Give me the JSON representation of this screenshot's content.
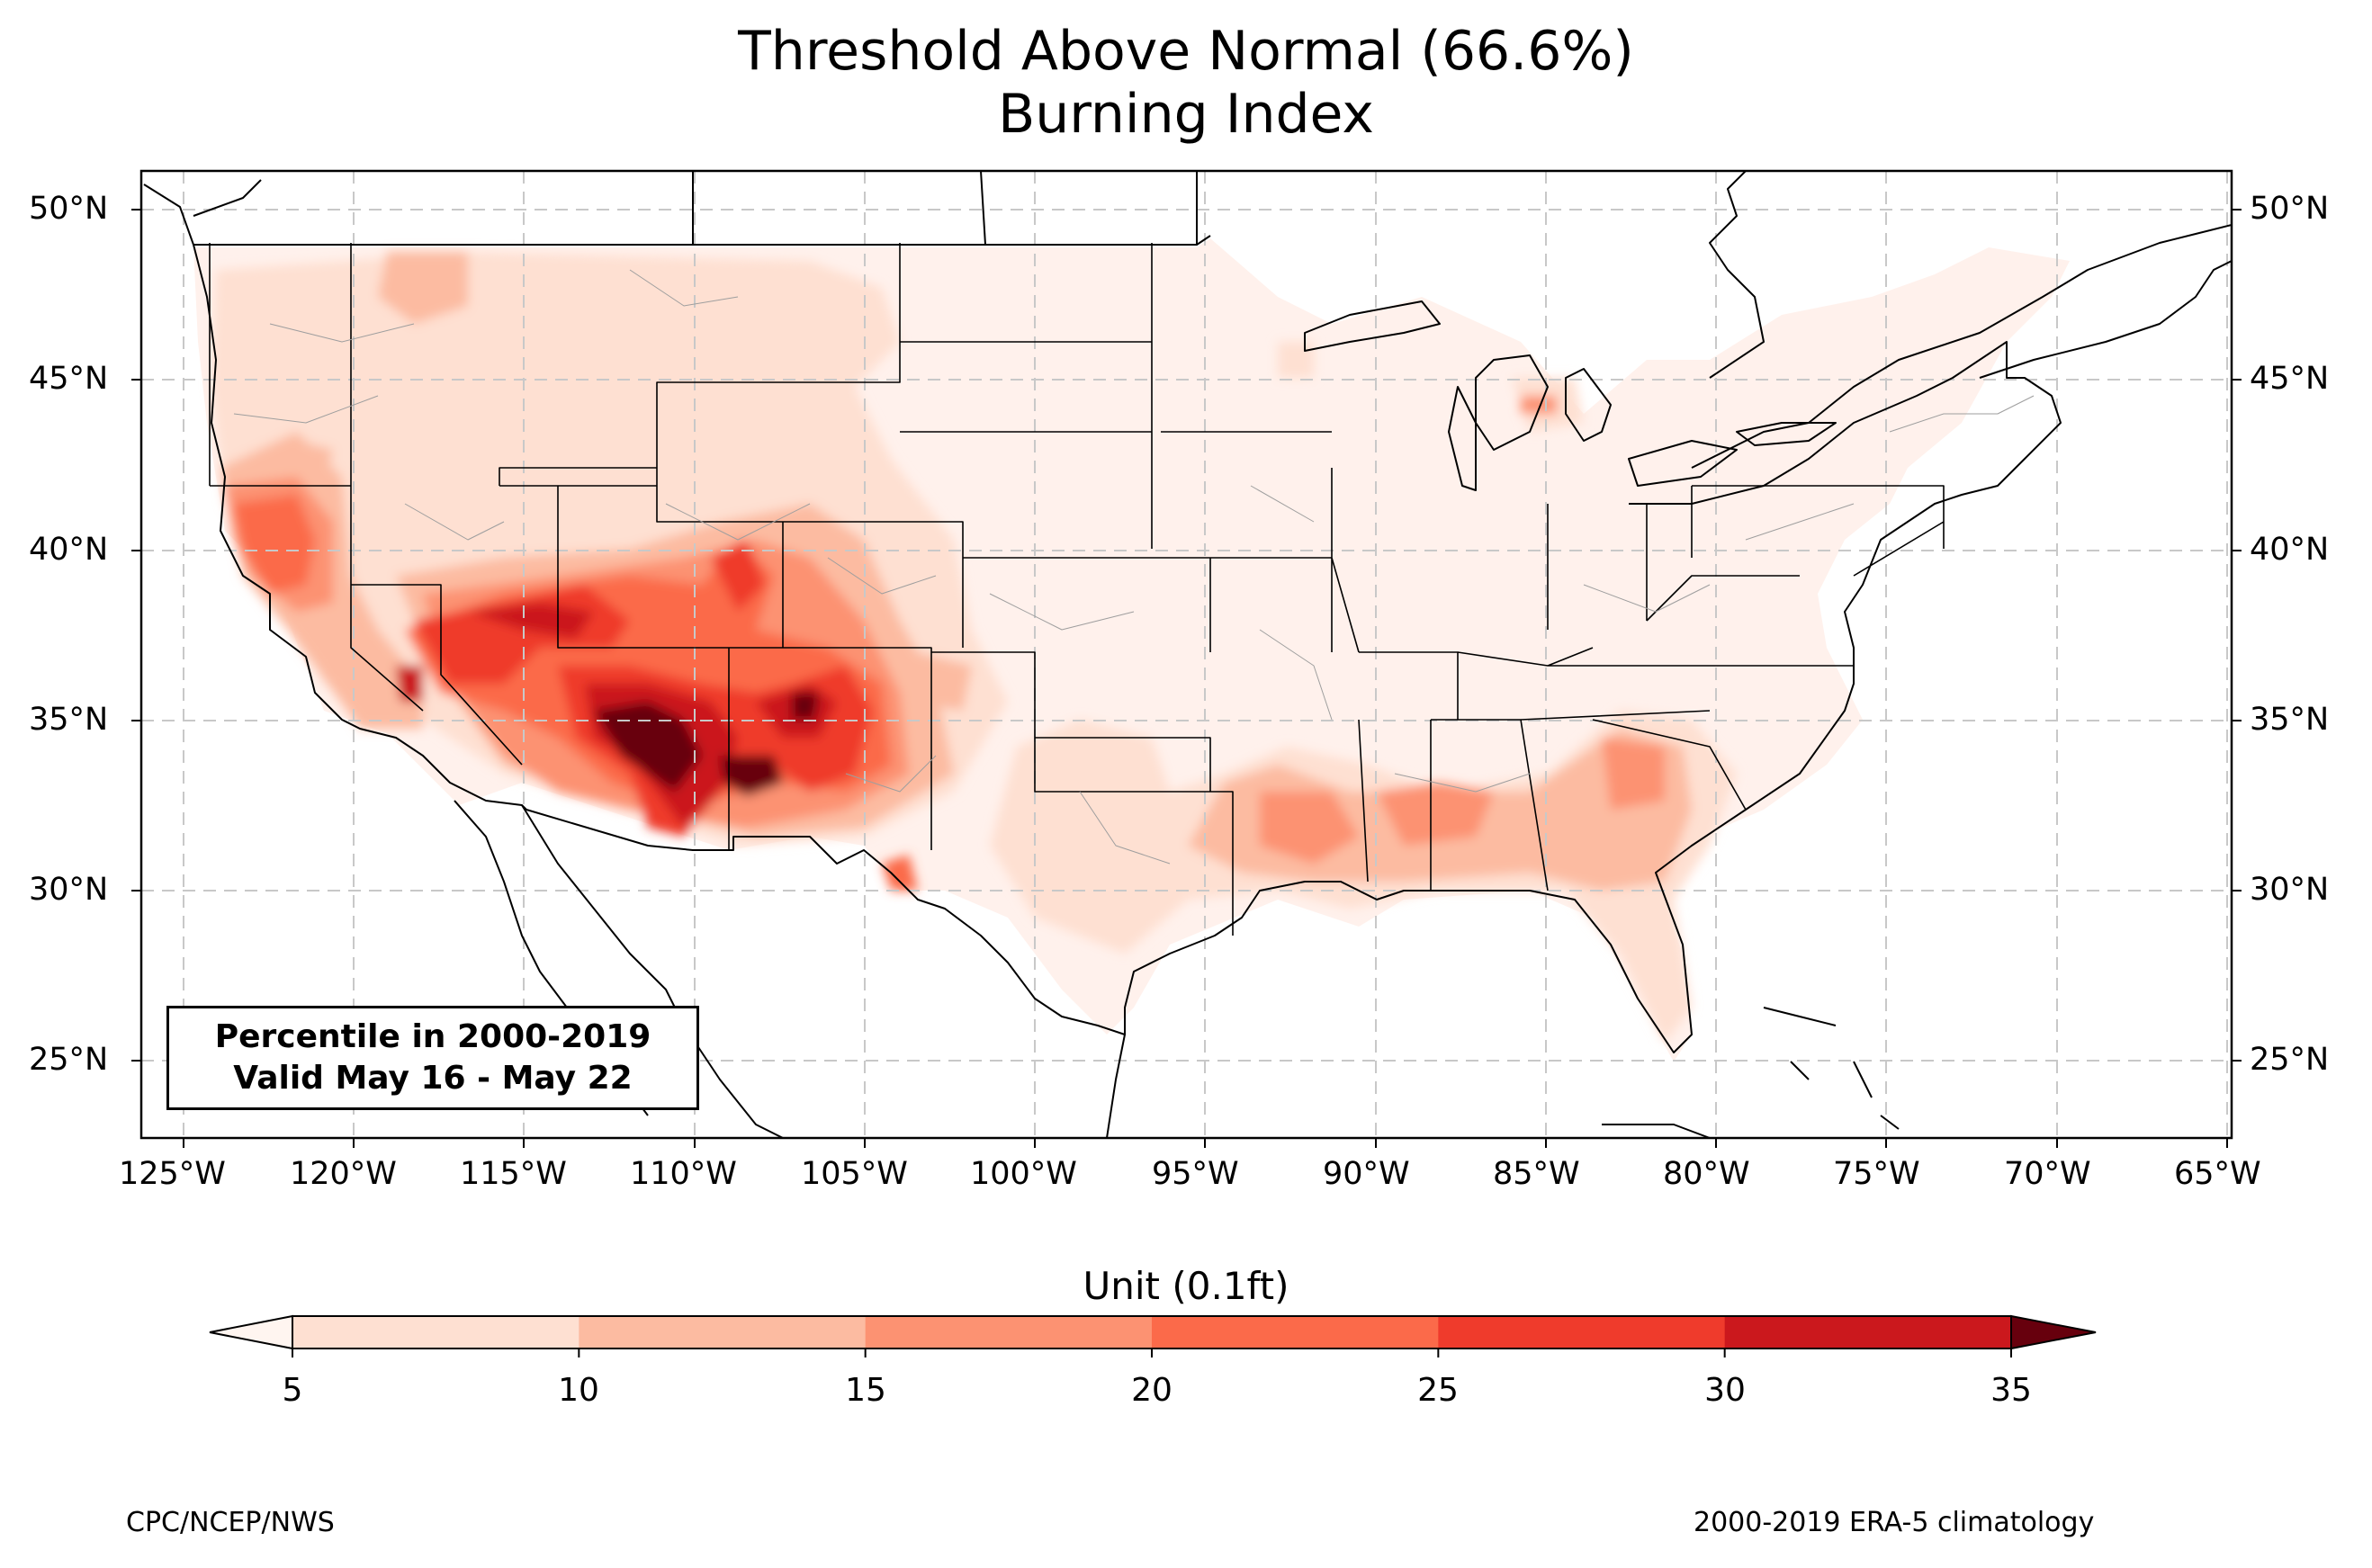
{
  "title_line1": "Threshold Above Normal (66.6%)",
  "title_line2": "Burning Index",
  "info_box": {
    "line1": "Percentile in 2000-2019",
    "line2": "Valid May 16 - May 22"
  },
  "lon_ticks": [
    "125°W",
    "120°W",
    "115°W",
    "110°W",
    "105°W",
    "100°W",
    "95°W",
    "90°W",
    "85°W",
    "80°W",
    "75°W",
    "70°W",
    "65°W"
  ],
  "lat_ticks": [
    "50°N",
    "45°N",
    "40°N",
    "35°N",
    "30°N",
    "25°N"
  ],
  "colorbar": {
    "title": "Unit (0.1ft)",
    "ticks": [
      "5",
      "10",
      "15",
      "20",
      "25",
      "30",
      "35"
    ],
    "colors": [
      "#fee0d2",
      "#fcbba1",
      "#fc9272",
      "#fb6a4a",
      "#ef3b2c",
      "#cb181d",
      "#99000d"
    ],
    "under_color": "#fff5f0",
    "over_color": "#67000d"
  },
  "footer_left": "CPC/NCEP/NWS",
  "footer_right": "2000-2019 ERA-5 climatology"
}
